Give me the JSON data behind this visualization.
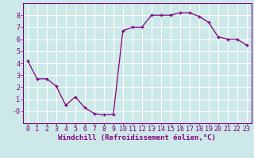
{
  "x": [
    0,
    1,
    2,
    3,
    4,
    5,
    6,
    7,
    8,
    9,
    10,
    11,
    12,
    13,
    14,
    15,
    16,
    17,
    18,
    19,
    20,
    21,
    22,
    23
  ],
  "y": [
    4.2,
    2.7,
    2.7,
    2.1,
    0.5,
    1.2,
    0.3,
    -0.2,
    -0.3,
    -0.25,
    6.7,
    7.0,
    7.0,
    8.0,
    8.0,
    8.0,
    8.2,
    8.2,
    7.9,
    7.4,
    6.2,
    6.0,
    6.0,
    5.5
  ],
  "line_color": "#800080",
  "marker": "+",
  "marker_color": "#800080",
  "bg_color": "#cce8e8",
  "grid_color": "#b0d8d8",
  "xlabel": "Windchill (Refroidissement éolien,°C)",
  "xlabel_color": "#800080",
  "tick_color": "#800080",
  "xlim": [
    -0.5,
    23.5
  ],
  "ylim": [
    -1.0,
    9.0
  ],
  "yticks": [
    0,
    1,
    2,
    3,
    4,
    5,
    6,
    7,
    8
  ],
  "xticks": [
    0,
    1,
    2,
    3,
    4,
    5,
    6,
    7,
    8,
    9,
    10,
    11,
    12,
    13,
    14,
    15,
    16,
    17,
    18,
    19,
    20,
    21,
    22,
    23
  ],
  "ytick_labels": [
    "-0",
    "1",
    "2",
    "3",
    "4",
    "5",
    "6",
    "7",
    "8"
  ],
  "spine_color": "#800080",
  "xlabel_fontsize": 6.5,
  "tick_fontsize": 6.0,
  "marker_size": 3.5,
  "line_width": 0.9
}
